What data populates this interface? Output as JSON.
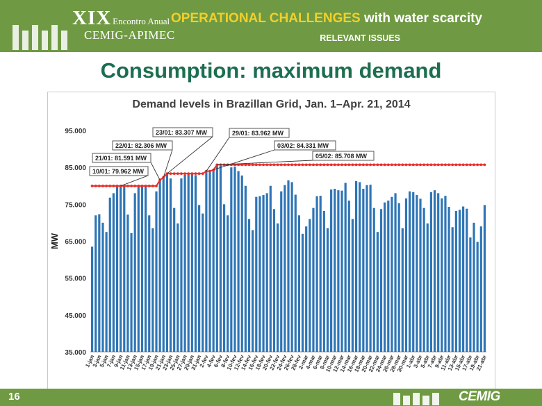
{
  "header": {
    "event_edition": "XIX",
    "event_name": "Encontro Anual",
    "event_org": "CEMIG-APIMEC",
    "title_highlight": "OPERATIONAL CHALLENGES",
    "title_rest": " with water scarcity",
    "subtitle": "RELEVANT ISSUES"
  },
  "slide_title": "Consumption: maximum demand",
  "footer": {
    "page_number": "16",
    "brand": "CEMIG"
  },
  "colors": {
    "bar": "#2e75b6",
    "record_line": "#e8302a",
    "title_green": "#1d6e4f",
    "band_green": "#6f9a43",
    "accent_yellow": "#f2d02a"
  },
  "chart_data": {
    "type": "bar",
    "title": "Demand levels in Brazillan Grid, Jan. 1–Apr. 21, 2014",
    "ylabel": "MW",
    "xlabel": "",
    "ylim": [
      35000,
      95000
    ],
    "y_ticks": [
      "35.000",
      "45.000",
      "55.000",
      "65.000",
      "75.000",
      "85.000",
      "95.000"
    ],
    "y_tick_values": [
      35000,
      45000,
      55000,
      65000,
      75000,
      85000,
      95000
    ],
    "x_tick_labels": [
      "1-jan",
      "3-jan",
      "5-jan",
      "7-jan",
      "9-jan",
      "11-jan",
      "13-jan",
      "15-jan",
      "17-jan",
      "19-jan",
      "21-jan",
      "23-jan",
      "25-jan",
      "27-jan",
      "29-jan",
      "31-jan",
      "2-fev",
      "4-fev",
      "6-fev",
      "8-fev",
      "10-fev",
      "12-fev",
      "14-fev",
      "16-fev",
      "18-fev",
      "20-fev",
      "22-fev",
      "24-fev",
      "26-fev",
      "28-fev",
      "2-mar",
      "4-mar",
      "6-mar",
      "8-mar",
      "10-mar",
      "12-mar",
      "14-mar",
      "16-mar",
      "18-mar",
      "20-mar",
      "22-mar",
      "24-mar",
      "26-mar",
      "28-mar",
      "30-mar",
      "1-abr",
      "3-abr",
      "5-abr",
      "7-abr",
      "9-abr",
      "11-abr",
      "13-abr",
      "15-abr",
      "17-abr",
      "19-abr",
      "21-abr"
    ],
    "values": [
      63500,
      72000,
      72300,
      70000,
      67500,
      76800,
      78000,
      79900,
      79962,
      80100,
      72200,
      67200,
      78000,
      79800,
      80000,
      80200,
      72000,
      68500,
      78500,
      81591,
      82306,
      83307,
      82000,
      74000,
      69800,
      82000,
      83000,
      83200,
      83300,
      82900,
      74800,
      72500,
      83962,
      83700,
      84331,
      85708,
      85400,
      75000,
      72000,
      85000,
      85200,
      84000,
      82800,
      80000,
      71000,
      68000,
      77000,
      77200,
      77500,
      78000,
      80000,
      73700,
      69800,
      78500,
      80200,
      81500,
      81000,
      77600,
      72000,
      67000,
      69000,
      71000,
      74000,
      77200,
      77300,
      73200,
      68500,
      79000,
      79200,
      78800,
      78700,
      80800,
      76000,
      71000,
      81300,
      81000,
      79200,
      80200,
      80300,
      74000,
      67500,
      73700,
      75500,
      76000,
      77000,
      78000,
      75300,
      68500,
      76600,
      78500,
      78300,
      77500,
      76500,
      74000,
      69800,
      78300,
      78800,
      78000,
      76600,
      77300,
      74300,
      68800,
      73200,
      73500,
      74400,
      73800,
      66000,
      70000,
      64800,
      69000,
      74800
    ],
    "record_line": [
      79962,
      79962,
      79962,
      79962,
      79962,
      79962,
      79962,
      79962,
      79962,
      79962,
      79962,
      79962,
      79962,
      79962,
      79962,
      79962,
      79962,
      79962,
      79962,
      81591,
      82306,
      83307,
      83307,
      83307,
      83307,
      83307,
      83307,
      83307,
      83307,
      83307,
      83307,
      83307,
      83962,
      83962,
      84331,
      85708,
      85708,
      85708,
      85708,
      85708,
      85708,
      85708,
      85708,
      85708,
      85708,
      85708,
      85708,
      85708,
      85708,
      85708,
      85708,
      85708,
      85708,
      85708,
      85708,
      85708,
      85708,
      85708,
      85708,
      85708,
      85708,
      85708,
      85708,
      85708,
      85708,
      85708,
      85708,
      85708,
      85708,
      85708,
      85708,
      85708,
      85708,
      85708,
      85708,
      85708,
      85708,
      85708,
      85708,
      85708,
      85708,
      85708,
      85708,
      85708,
      85708,
      85708,
      85708,
      85708,
      85708,
      85708,
      85708,
      85708,
      85708,
      85708,
      85708,
      85708,
      85708,
      85708,
      85708,
      85708,
      85708,
      85708,
      85708,
      85708,
      85708,
      85708,
      85708,
      85708,
      85708,
      85708,
      85708
    ],
    "annotations": [
      {
        "text": "10/01: 79.962 MW",
        "index": 8
      },
      {
        "text": "21/01: 81.591 MW",
        "index": 19
      },
      {
        "text": "22/01: 82.306 MW",
        "index": 20
      },
      {
        "text": "23/01: 83.307 MW",
        "index": 21
      },
      {
        "text": "29/01: 83.962 MW",
        "index": 32
      },
      {
        "text": "03/02: 84.331 MW",
        "index": 34
      },
      {
        "text": "05/02: 85.708 MW",
        "index": 35
      }
    ]
  }
}
